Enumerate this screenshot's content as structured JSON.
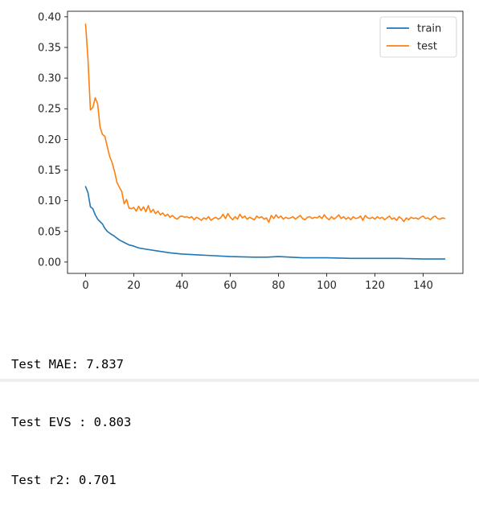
{
  "chart_data": {
    "type": "line",
    "title": "",
    "xlabel": "",
    "ylabel": "",
    "xlim": [
      -7.5,
      156.5
    ],
    "ylim": [
      -0.0185,
      0.409
    ],
    "xticks": [
      0,
      20,
      40,
      60,
      80,
      100,
      120,
      140
    ],
    "xtick_labels": [
      "0",
      "20",
      "40",
      "60",
      "80",
      "100",
      "120",
      "140"
    ],
    "yticks": [
      0.0,
      0.05,
      0.1,
      0.15,
      0.2,
      0.25,
      0.3,
      0.35,
      0.4
    ],
    "ytick_labels": [
      "0.00",
      "0.05",
      "0.10",
      "0.15",
      "0.20",
      "0.25",
      "0.30",
      "0.35",
      "0.40"
    ],
    "grid": false,
    "legend": "upper-right",
    "n_points": 150,
    "series": [
      {
        "name": "train",
        "color": "#1f77b4",
        "points": [
          [
            0,
            0.123
          ],
          [
            1,
            0.113
          ],
          [
            2,
            0.09
          ],
          [
            3,
            0.087
          ],
          [
            4,
            0.077
          ],
          [
            5,
            0.07
          ],
          [
            6,
            0.066
          ],
          [
            7,
            0.062
          ],
          [
            8,
            0.055
          ],
          [
            9,
            0.05
          ],
          [
            10,
            0.047
          ],
          [
            12,
            0.042
          ],
          [
            14,
            0.036
          ],
          [
            16,
            0.032
          ],
          [
            18,
            0.028
          ],
          [
            20,
            0.026
          ],
          [
            22,
            0.023
          ],
          [
            25,
            0.021
          ],
          [
            30,
            0.018
          ],
          [
            35,
            0.015
          ],
          [
            40,
            0.013
          ],
          [
            50,
            0.011
          ],
          [
            60,
            0.009
          ],
          [
            70,
            0.008
          ],
          [
            75,
            0.008
          ],
          [
            80,
            0.009
          ],
          [
            85,
            0.008
          ],
          [
            90,
            0.007
          ],
          [
            100,
            0.007
          ],
          [
            110,
            0.006
          ],
          [
            120,
            0.006
          ],
          [
            130,
            0.006
          ],
          [
            140,
            0.005
          ],
          [
            149,
            0.005
          ]
        ]
      },
      {
        "name": "test",
        "color": "#ff7f0e",
        "points": [
          [
            0,
            0.388
          ],
          [
            1,
            0.33
          ],
          [
            2,
            0.248
          ],
          [
            3,
            0.252
          ],
          [
            4,
            0.268
          ],
          [
            5,
            0.258
          ],
          [
            6,
            0.22
          ],
          [
            7,
            0.208
          ],
          [
            8,
            0.205
          ],
          [
            9,
            0.188
          ],
          [
            10,
            0.172
          ],
          [
            11,
            0.162
          ],
          [
            12,
            0.148
          ],
          [
            13,
            0.13
          ],
          [
            14,
            0.122
          ],
          [
            15,
            0.115
          ],
          [
            16,
            0.095
          ],
          [
            17,
            0.102
          ],
          [
            18,
            0.088
          ],
          [
            19,
            0.087
          ],
          [
            20,
            0.089
          ],
          [
            21,
            0.083
          ],
          [
            22,
            0.091
          ],
          [
            23,
            0.084
          ],
          [
            24,
            0.09
          ],
          [
            25,
            0.082
          ],
          [
            26,
            0.092
          ],
          [
            27,
            0.081
          ],
          [
            28,
            0.086
          ],
          [
            29,
            0.079
          ],
          [
            30,
            0.083
          ],
          [
            31,
            0.077
          ],
          [
            32,
            0.08
          ],
          [
            33,
            0.075
          ],
          [
            34,
            0.078
          ],
          [
            35,
            0.073
          ],
          [
            36,
            0.076
          ],
          [
            37,
            0.072
          ],
          [
            38,
            0.07
          ],
          [
            39,
            0.074
          ],
          [
            40,
            0.075
          ],
          [
            41,
            0.073
          ],
          [
            42,
            0.074
          ],
          [
            43,
            0.072
          ],
          [
            44,
            0.074
          ],
          [
            45,
            0.069
          ],
          [
            46,
            0.073
          ],
          [
            47,
            0.071
          ],
          [
            48,
            0.068
          ],
          [
            49,
            0.072
          ],
          [
            50,
            0.07
          ],
          [
            51,
            0.074
          ],
          [
            52,
            0.068
          ],
          [
            53,
            0.071
          ],
          [
            54,
            0.073
          ],
          [
            55,
            0.07
          ],
          [
            56,
            0.072
          ],
          [
            57,
            0.078
          ],
          [
            58,
            0.071
          ],
          [
            59,
            0.079
          ],
          [
            60,
            0.073
          ],
          [
            61,
            0.069
          ],
          [
            62,
            0.074
          ],
          [
            63,
            0.07
          ],
          [
            64,
            0.078
          ],
          [
            65,
            0.072
          ],
          [
            66,
            0.075
          ],
          [
            67,
            0.07
          ],
          [
            68,
            0.073
          ],
          [
            69,
            0.071
          ],
          [
            70,
            0.069
          ],
          [
            71,
            0.075
          ],
          [
            72,
            0.072
          ],
          [
            73,
            0.074
          ],
          [
            74,
            0.07
          ],
          [
            75,
            0.072
          ],
          [
            76,
            0.065
          ],
          [
            77,
            0.076
          ],
          [
            78,
            0.071
          ],
          [
            79,
            0.077
          ],
          [
            80,
            0.072
          ],
          [
            81,
            0.075
          ],
          [
            82,
            0.07
          ],
          [
            83,
            0.073
          ],
          [
            84,
            0.071
          ],
          [
            85,
            0.072
          ],
          [
            86,
            0.074
          ],
          [
            87,
            0.07
          ],
          [
            88,
            0.073
          ],
          [
            89,
            0.076
          ],
          [
            90,
            0.071
          ],
          [
            91,
            0.069
          ],
          [
            92,
            0.073
          ],
          [
            93,
            0.074
          ],
          [
            94,
            0.071
          ],
          [
            95,
            0.073
          ],
          [
            96,
            0.072
          ],
          [
            97,
            0.075
          ],
          [
            98,
            0.071
          ],
          [
            99,
            0.077
          ],
          [
            100,
            0.072
          ],
          [
            101,
            0.069
          ],
          [
            102,
            0.074
          ],
          [
            103,
            0.07
          ],
          [
            104,
            0.073
          ],
          [
            105,
            0.077
          ],
          [
            106,
            0.071
          ],
          [
            107,
            0.074
          ],
          [
            108,
            0.07
          ],
          [
            109,
            0.073
          ],
          [
            110,
            0.069
          ],
          [
            111,
            0.074
          ],
          [
            112,
            0.071
          ],
          [
            113,
            0.072
          ],
          [
            114,
            0.075
          ],
          [
            115,
            0.068
          ],
          [
            116,
            0.076
          ],
          [
            117,
            0.072
          ],
          [
            118,
            0.071
          ],
          [
            119,
            0.073
          ],
          [
            120,
            0.07
          ],
          [
            121,
            0.074
          ],
          [
            122,
            0.071
          ],
          [
            123,
            0.073
          ],
          [
            124,
            0.069
          ],
          [
            125,
            0.072
          ],
          [
            126,
            0.075
          ],
          [
            127,
            0.07
          ],
          [
            128,
            0.072
          ],
          [
            129,
            0.068
          ],
          [
            130,
            0.074
          ],
          [
            131,
            0.071
          ],
          [
            132,
            0.066
          ],
          [
            133,
            0.072
          ],
          [
            134,
            0.069
          ],
          [
            135,
            0.073
          ],
          [
            136,
            0.071
          ],
          [
            137,
            0.072
          ],
          [
            138,
            0.07
          ],
          [
            139,
            0.073
          ],
          [
            140,
            0.075
          ],
          [
            141,
            0.071
          ],
          [
            142,
            0.072
          ],
          [
            143,
            0.069
          ],
          [
            144,
            0.073
          ],
          [
            145,
            0.075
          ],
          [
            146,
            0.071
          ],
          [
            147,
            0.07
          ],
          [
            148,
            0.072
          ],
          [
            149,
            0.071
          ]
        ]
      }
    ]
  },
  "output": {
    "lines": [
      "Test MAE: 7.837",
      "Test EVS : 0.803",
      "Test r2: 0.701"
    ]
  }
}
